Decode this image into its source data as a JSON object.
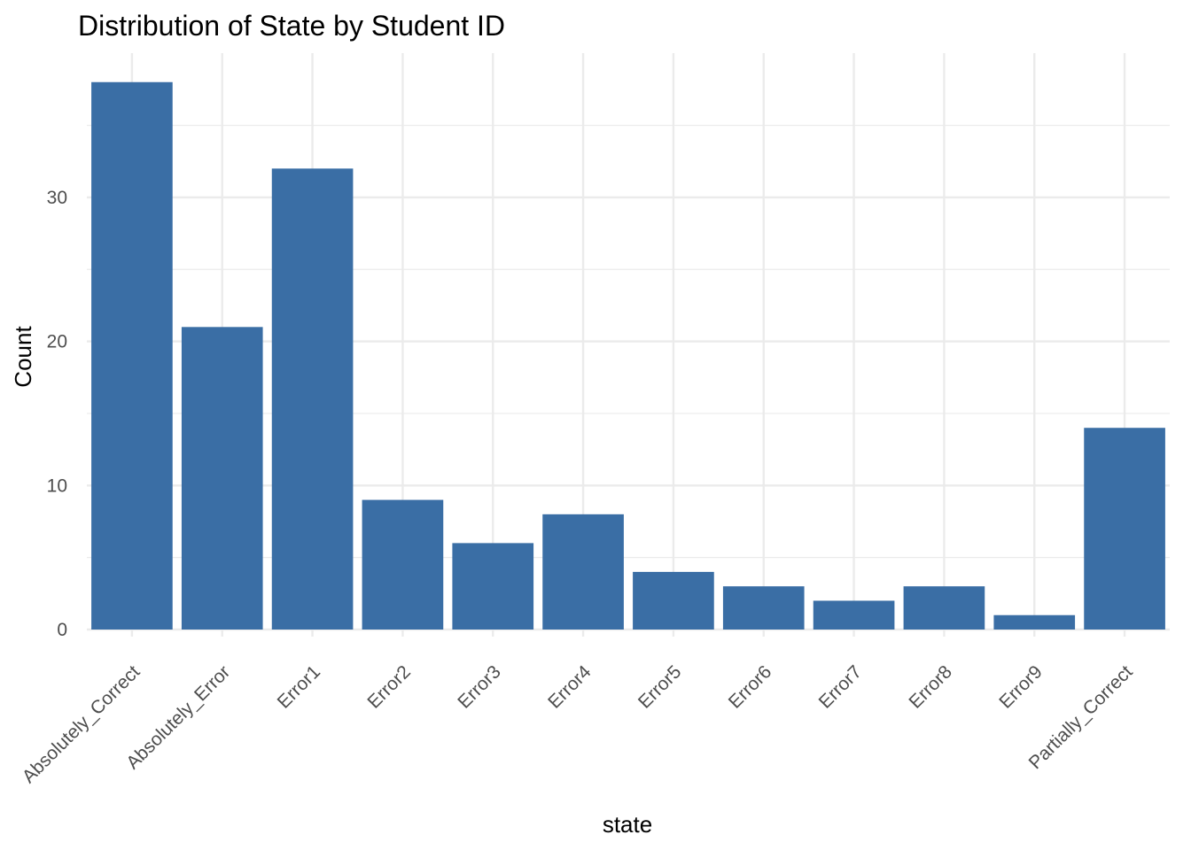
{
  "chart_data": {
    "type": "bar",
    "title": "Distribution of State by Student ID",
    "xlabel": "state",
    "ylabel": "Count",
    "categories": [
      "Absolutely_Correct",
      "Absolutely_Error",
      "Error1",
      "Error2",
      "Error3",
      "Error4",
      "Error5",
      "Error6",
      "Error7",
      "Error8",
      "Error9",
      "Partially_Correct"
    ],
    "values": [
      38,
      21,
      32,
      9,
      6,
      8,
      4,
      3,
      2,
      3,
      1,
      14
    ],
    "ylim": [
      0,
      40
    ],
    "yticks": [
      0,
      10,
      20,
      30
    ],
    "grid": true,
    "bar_color": "#3a6ea5",
    "grid_color": "#ebebeb"
  }
}
